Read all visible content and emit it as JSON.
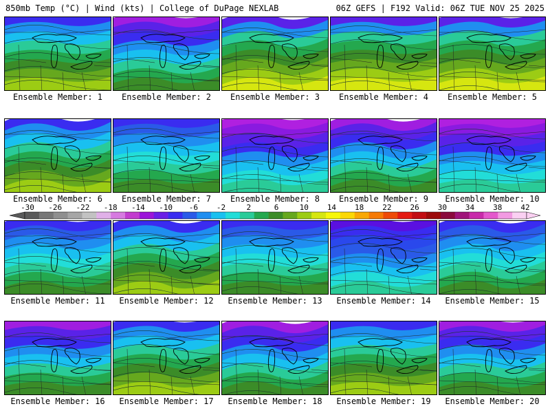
{
  "header": {
    "left": "850mb Temp (°C) | Wind (kts) | College of DuPage NEXLAB",
    "right": "06Z GEFS | F192 Valid: 06Z TUE NOV 25 2025"
  },
  "members": [
    {
      "label": "Ensemble Member: 1",
      "pattern": "warm"
    },
    {
      "label": "Ensemble Member: 2",
      "pattern": "mid"
    },
    {
      "label": "Ensemble Member: 3",
      "pattern": "hot"
    },
    {
      "label": "Ensemble Member: 4",
      "pattern": "hot"
    },
    {
      "label": "Ensemble Member: 5",
      "pattern": "hot"
    },
    {
      "label": "Ensemble Member: 6",
      "pattern": "warm"
    },
    {
      "label": "Ensemble Member: 7",
      "pattern": "cool"
    },
    {
      "label": "Ensemble Member: 8",
      "pattern": "cold"
    },
    {
      "label": "Ensemble Member: 9",
      "pattern": "mid"
    },
    {
      "label": "Ensemble Member: 10",
      "pattern": "cold"
    },
    {
      "label": "Ensemble Member: 11",
      "pattern": "cool"
    },
    {
      "label": "Ensemble Member: 12",
      "pattern": "warm"
    },
    {
      "label": "Ensemble Member: 13",
      "pattern": "cool"
    },
    {
      "label": "Ensemble Member: 14",
      "pattern": "frigid"
    },
    {
      "label": "Ensemble Member: 15",
      "pattern": "cool"
    },
    {
      "label": "Ensemble Member: 16",
      "pattern": "mid"
    },
    {
      "label": "Ensemble Member: 17",
      "pattern": "warm"
    },
    {
      "label": "Ensemble Member: 18",
      "pattern": "mid"
    },
    {
      "label": "Ensemble Member: 19",
      "pattern": "warm"
    },
    {
      "label": "Ensemble Member: 20",
      "pattern": "mid"
    }
  ],
  "colorbar": {
    "labels": [
      "-30",
      "-26",
      "-22",
      "-18",
      "-14",
      "-10",
      "-6",
      "-2",
      "2",
      "6",
      "10",
      "14",
      "18",
      "22",
      "26",
      "30",
      "34",
      "38",
      "42"
    ],
    "colors": [
      "#5a5a5a",
      "#777777",
      "#8f8f8f",
      "#a6a6a6",
      "#c2c2c2",
      "#e0b0e8",
      "#d67ae0",
      "#c23ccf",
      "#9b14d9",
      "#6a1ee6",
      "#3a2cf0",
      "#2a5ae8",
      "#1f8ef0",
      "#19c0f0",
      "#22ddd8",
      "#2acb98",
      "#24a84e",
      "#3b8c28",
      "#66a81e",
      "#9ccc14",
      "#d6e610",
      "#f7f70a",
      "#fbd806",
      "#f9a805",
      "#f57a06",
      "#ee4a08",
      "#e41a12",
      "#c20c12",
      "#9c0a0a",
      "#8a0a3c",
      "#a0147a",
      "#c82aaa",
      "#e458cc",
      "#f29ae2",
      "#fad0f2"
    ]
  }
}
